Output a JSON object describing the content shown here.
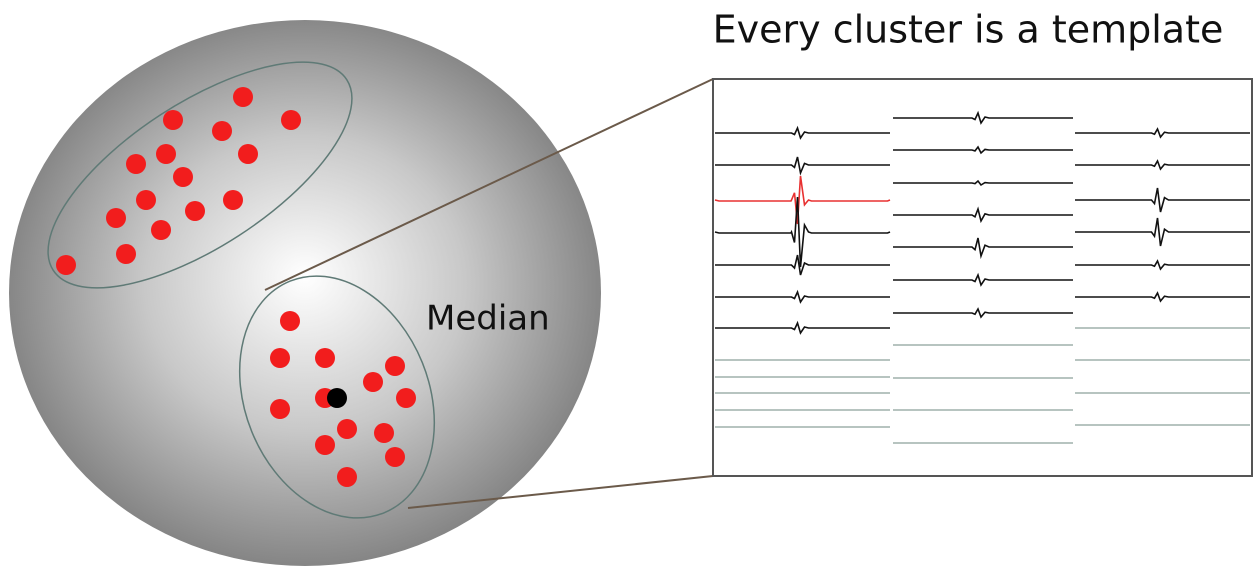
{
  "title": "Every cluster is a template",
  "median_label": "Median"
}
